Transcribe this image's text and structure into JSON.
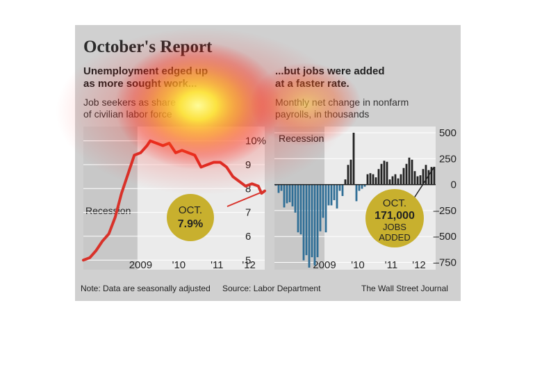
{
  "title": "October's Report",
  "note": "Note: Data are seasonally adjusted",
  "source": "Source: Labor Department",
  "credit": "The Wall Street Journal",
  "chart_data": [
    {
      "type": "line",
      "title": "Unemployment edged up as more sought work...",
      "subtitle": "Job seekers as share of civilian labor force",
      "title_lines": [
        "Unemployment edged up",
        "as more sought work..."
      ],
      "subtitle_lines": [
        "Job seekers as share",
        "of civilian labor force"
      ],
      "x_ticks": [
        "2009",
        "'10",
        "'11",
        "'12"
      ],
      "y_ticks": [
        "10%",
        "9",
        "8",
        "7",
        "6",
        "5"
      ],
      "y_tick_values": [
        10,
        9,
        8,
        7,
        6,
        5
      ],
      "ylim": [
        4.6,
        10.6
      ],
      "xlim": [
        "2008-01",
        "2012-10"
      ],
      "recession_label": "Recession",
      "recession": [
        "2008-01",
        "2009-06"
      ],
      "callout": [
        "OCT.",
        "7.9%"
      ],
      "series": [
        {
          "x": [
            "2008-01",
            "2008-03",
            "2008-05",
            "2008-07",
            "2008-09",
            "2008-11",
            "2009-01",
            "2009-03",
            "2009-05",
            "2009-07",
            "2009-09",
            "2009-10",
            "2009-12",
            "2010-02",
            "2010-04",
            "2010-06",
            "2010-08",
            "2010-10",
            "2010-12",
            "2011-02",
            "2011-04",
            "2011-06",
            "2011-08",
            "2011-10",
            "2011-12",
            "2012-02",
            "2012-04",
            "2012-06",
            "2012-08",
            "2012-09",
            "2012-10"
          ],
          "y": [
            5.0,
            5.1,
            5.4,
            5.8,
            6.1,
            6.8,
            7.8,
            8.6,
            9.4,
            9.5,
            9.8,
            10.0,
            9.9,
            9.8,
            9.9,
            9.5,
            9.6,
            9.5,
            9.4,
            8.9,
            9.0,
            9.1,
            9.1,
            8.9,
            8.5,
            8.3,
            8.1,
            8.2,
            8.1,
            7.8,
            7.9
          ]
        }
      ]
    },
    {
      "type": "bar",
      "title": "...but jobs were added at a faster rate.",
      "subtitle": "Monthly net change in nonfarm payrolls, in thousands",
      "title_lines": [
        "...but jobs were added",
        "at a faster rate."
      ],
      "subtitle_lines": [
        "Monthly net change in nonfarm",
        "payrolls, in thousands"
      ],
      "x_ticks": [
        "2009",
        "'10",
        "'11",
        "'12"
      ],
      "y_ticks": [
        "500",
        "250",
        "0",
        "–250",
        "–500",
        "–750"
      ],
      "y_tick_values": [
        500,
        250,
        0,
        -250,
        -500,
        -750
      ],
      "ylim": [
        -820,
        560
      ],
      "recession_label": "Recession",
      "recession": [
        "2008-01",
        "2009-06"
      ],
      "callout": [
        "OCT.",
        "171,000",
        "JOBS",
        "ADDED"
      ],
      "start_month": "2008-01",
      "values": [
        -10,
        -80,
        -60,
        -220,
        -180,
        -170,
        -210,
        -270,
        -460,
        -480,
        -730,
        -680,
        -800,
        -700,
        -780,
        -700,
        -450,
        -320,
        -460,
        -200,
        -200,
        -150,
        -230,
        -60,
        -110,
        50,
        190,
        240,
        500,
        -160,
        -60,
        -40,
        -20,
        100,
        110,
        100,
        70,
        150,
        200,
        230,
        220,
        50,
        80,
        100,
        60,
        100,
        160,
        200,
        260,
        240,
        130,
        80,
        90,
        150,
        190,
        140,
        170,
        171
      ]
    }
  ]
}
